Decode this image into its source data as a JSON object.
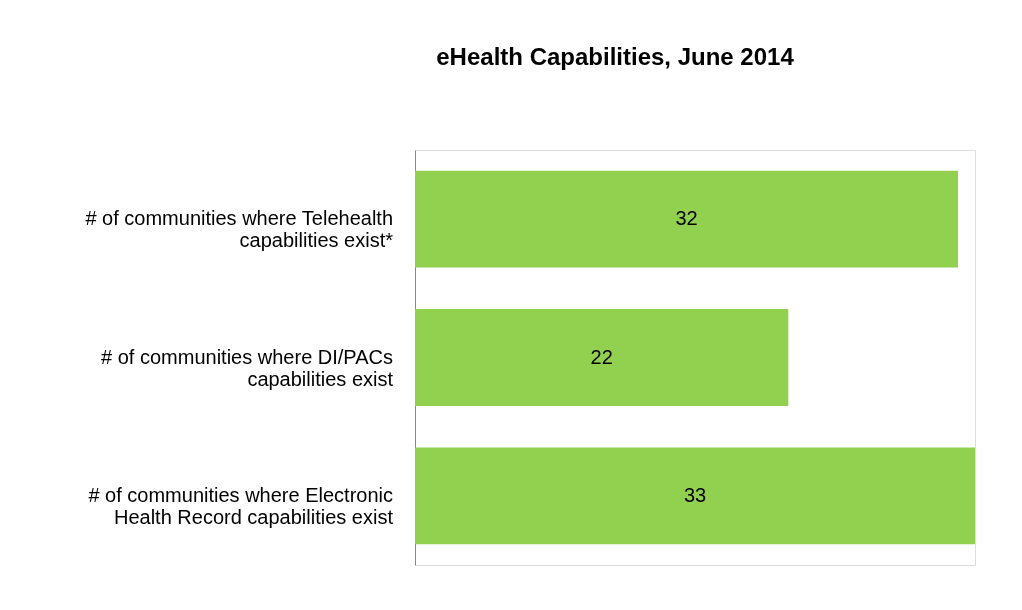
{
  "chart_data": {
    "type": "bar",
    "orientation": "horizontal",
    "title": "eHealth Capabilities, June 2014",
    "categories": [
      "# of communities where Telehealth capabilities exist*",
      "# of communities where DI/PACs capabilities exist",
      "# of communities where Electronic Health Record capabilities exist"
    ],
    "values": [
      32,
      22,
      33
    ],
    "color": "#92d050",
    "data_labels": true
  }
}
